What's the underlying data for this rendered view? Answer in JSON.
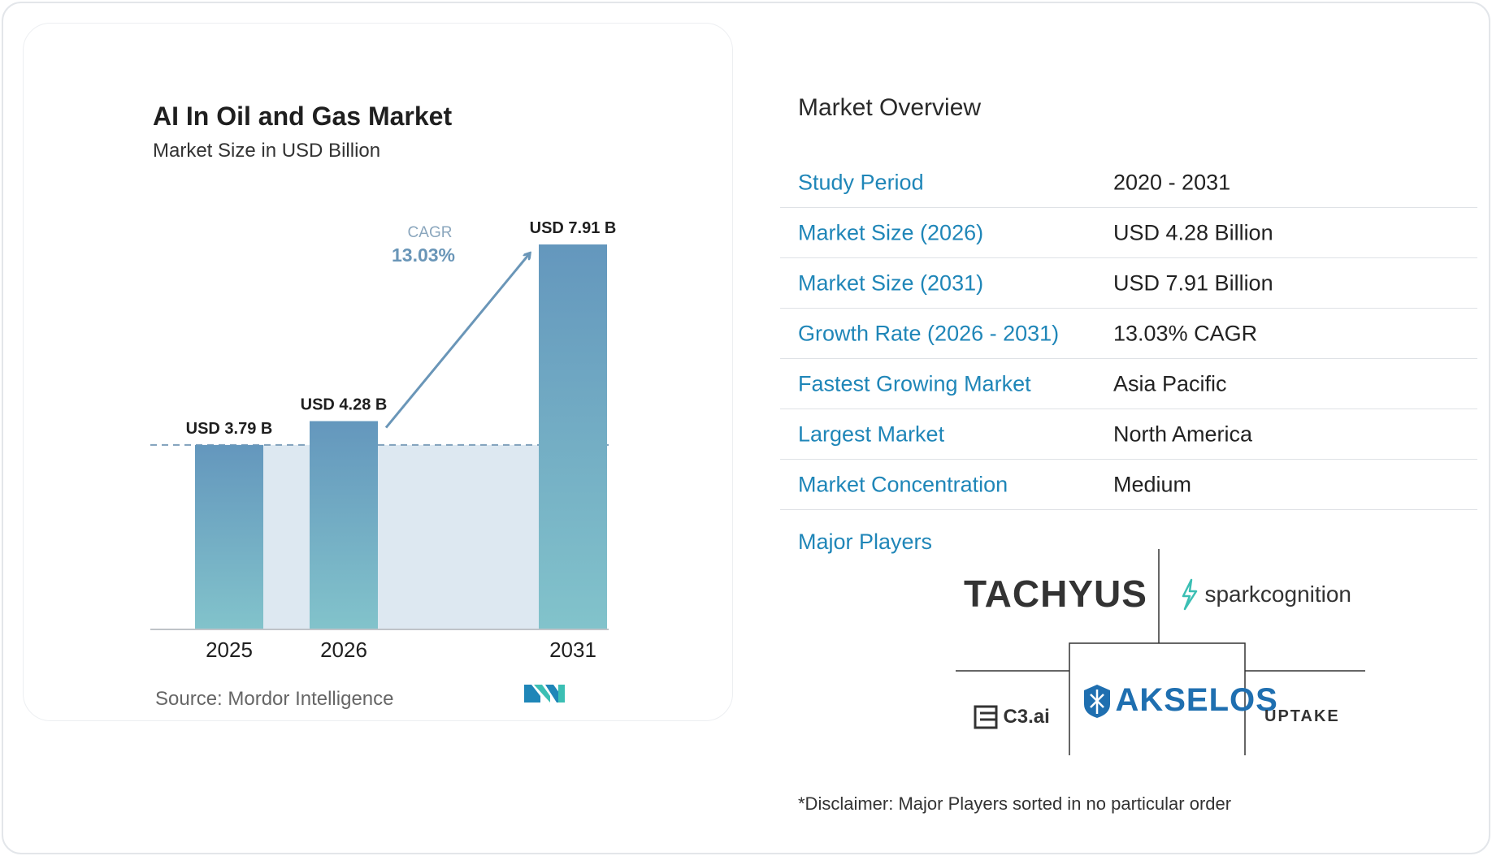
{
  "chart": {
    "title": "AI In Oil and Gas Market",
    "subtitle": "Market Size in USD Billion",
    "source": "Source:  Mordor Intelligence",
    "cagr_label": "CAGR",
    "cagr_value": "13.03%",
    "colors": {
      "bar_top": "#6497bd",
      "bar_bottom": "#82c3cb",
      "band": "#dde8f1",
      "arrow": "#6a96b8",
      "cagr_text": "#6a96b8"
    },
    "logo_icon": "mordor-intelligence-logo"
  },
  "chart_data": {
    "type": "bar",
    "title": "AI In Oil and Gas Market",
    "subtitle": "Market Size in USD Billion",
    "categories": [
      "2025",
      "2026",
      "2031"
    ],
    "values": [
      3.79,
      4.28,
      7.91
    ],
    "data_labels": [
      "USD 3.79 B",
      "USD 4.28 B",
      "USD 7.91 B"
    ],
    "ylim": [
      0,
      7.91
    ],
    "grid": false,
    "annotation": {
      "text": "CAGR",
      "value": "13.03%"
    }
  },
  "overview": {
    "title": "Market Overview",
    "rows": [
      {
        "key": "Study Period",
        "value": "2020 - 2031"
      },
      {
        "key": "Market Size (2026)",
        "value": "USD 4.28 Billion"
      },
      {
        "key": "Market Size (2031)",
        "value": "USD 7.91 Billion"
      },
      {
        "key": "Growth Rate (2026 - 2031)",
        "value": "13.03% CAGR"
      },
      {
        "key": "Fastest Growing Market",
        "value": "Asia Pacific"
      },
      {
        "key": "Largest Market",
        "value": "North America"
      },
      {
        "key": "Market Concentration",
        "value": "Medium"
      }
    ],
    "players_label": "Major Players",
    "players": [
      "TACHYUS",
      "sparkcognition",
      "C3.ai",
      "AKSELOS",
      "UPTAKE"
    ],
    "disclaimer": "*Disclaimer: Major Players sorted in no particular order",
    "key_color": "#1f86b8"
  }
}
